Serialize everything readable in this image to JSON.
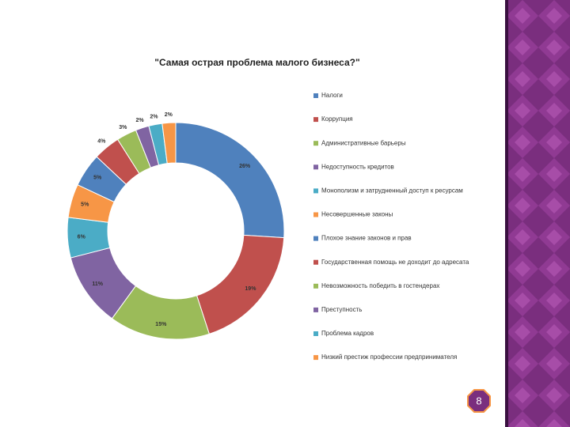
{
  "chart_data": {
    "type": "donut",
    "title": "\"Самая острая проблема малого бизнеса?\"",
    "categories": [
      "Налоги",
      "Коррупция",
      "Административные барьеры",
      "Недоступность кредитов",
      "Монополизм и затрудненный доступ к ресурсам",
      "Несовершенные законы",
      "Плохое знание законов и прав",
      "Государственная помощь не доходит до адресата",
      "Невозможность победить в гостендерах",
      "Преступность",
      "Проблема кадров",
      "Низкий престиж профессии предпринимателя"
    ],
    "values": [
      26,
      19,
      15,
      11,
      6,
      5,
      5,
      4,
      3,
      2,
      2,
      2
    ],
    "value_labels": [
      "26%",
      "19%",
      "15%",
      "11%",
      "6%",
      "5%",
      "5%",
      "4%",
      "3%",
      "2%",
      "2%",
      "2%"
    ],
    "colors": [
      "#4f81bd",
      "#c0504d",
      "#9bbb59",
      "#8064a2",
      "#4bacc6",
      "#f79646",
      "#4f81bd",
      "#c0504d",
      "#9bbb59",
      "#8064a2",
      "#4bacc6",
      "#f79646"
    ],
    "legend": "right"
  },
  "slide_number": "8"
}
